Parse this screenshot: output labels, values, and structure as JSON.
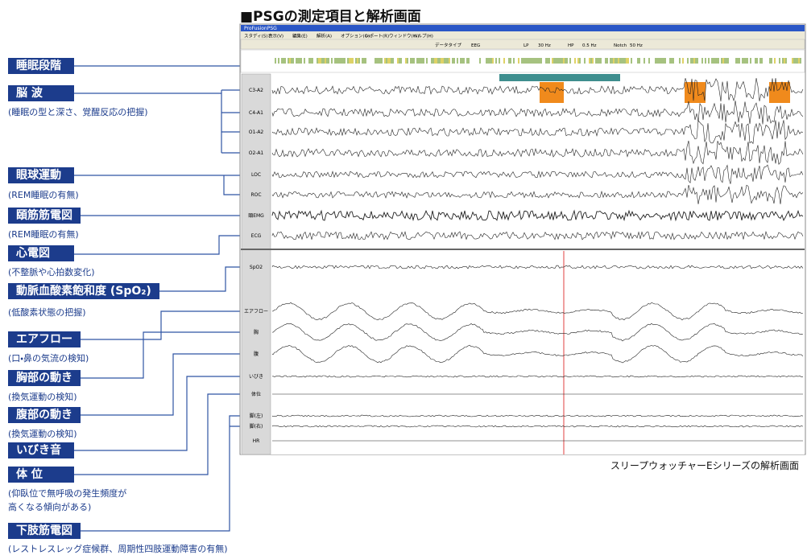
{
  "header": {
    "title": "■PSGの測定項目と解析画面"
  },
  "items": [
    {
      "label": "睡眠段階"
    },
    {
      "label": "脳 波",
      "description": [
        "(睡眠の型と深さ、覚醒反応の把握)"
      ]
    },
    {
      "label": "眼球運動",
      "description": [
        "(REM睡眠の有無)"
      ]
    },
    {
      "label": "頤筋筋電図",
      "description": [
        "(REM睡眠の有無)"
      ]
    },
    {
      "label": "心電図",
      "description": [
        "(不整脈や心拍数変化)"
      ]
    },
    {
      "label": "動脈血酸素飽和度 (SpO₂)",
      "description": [
        "(低酸素状態の把握)"
      ]
    },
    {
      "label": "エアフロー",
      "description": [
        "(口・鼻の気流の検知)"
      ]
    },
    {
      "label": "胸部の動き",
      "description": [
        "(換気運動の検知)"
      ]
    },
    {
      "label": "腹部の動き",
      "description": [
        "(換気運動の検知)"
      ]
    },
    {
      "label": "いびき音"
    },
    {
      "label": "体 位",
      "description": [
        "(仰臥位で無呼吸の発生頻度が",
        "高くなる傾向がある)"
      ]
    },
    {
      "label": "下肢筋電図",
      "description": [
        "(レストレスレッグ症候群、周期性四肢運動障害の有無)"
      ]
    }
  ],
  "screenshot": {
    "window_title": "ProFusionPSG",
    "menu": [
      "スタディ(S)",
      "表示(V)",
      "編集(E)",
      "解析(A)",
      "オプション(O)",
      "レポート(R)",
      "ウィンドウ(W)",
      "ヘルプ(H)"
    ],
    "toolbar": [
      "データタイプ",
      "EEG",
      "LP",
      "30 Hz",
      "HP",
      "0.5 Hz",
      "Notch",
      "50 Hz"
    ],
    "channels": [
      "C3-A2",
      "C4-A1",
      "O1-A2",
      "O2-A1",
      "LOC",
      "ROC",
      "頤EMG",
      "ECG",
      "SpO2",
      "エアフロー",
      "胸",
      "腹",
      "いびき",
      "体位",
      "脚(左)",
      "脚(右)",
      "HR"
    ]
  },
  "caption": "スリープウォッチャーEシリーズの解析画面"
}
